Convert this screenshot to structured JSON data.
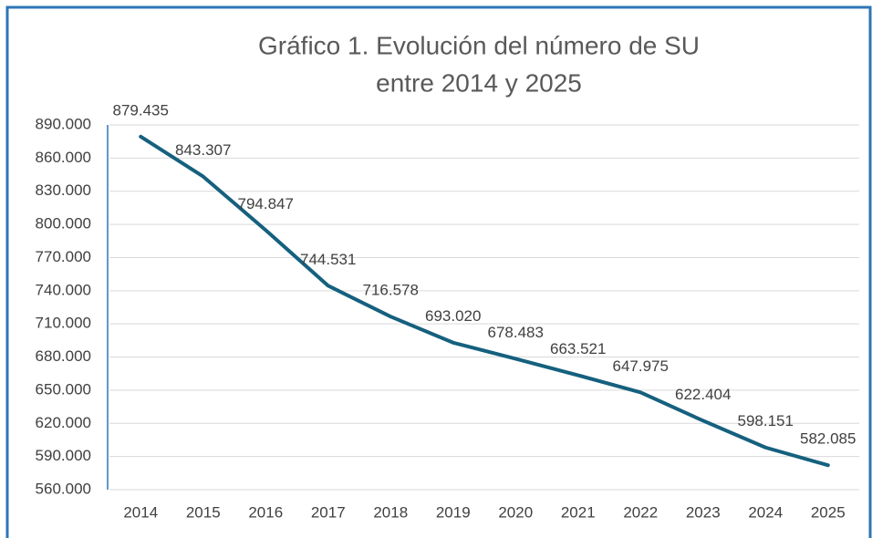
{
  "chart_data": {
    "type": "line",
    "title": [
      "Gráfico 1. Evolución del número de SU",
      "entre 2014 y 2025"
    ],
    "categories": [
      "2014",
      "2015",
      "2016",
      "2017",
      "2018",
      "2019",
      "2020",
      "2021",
      "2022",
      "2023",
      "2024",
      "2025"
    ],
    "values": [
      879435,
      843307,
      794847,
      744531,
      716578,
      693020,
      678483,
      663521,
      647975,
      622404,
      598151,
      582085
    ],
    "value_labels": [
      "879.435",
      "843.307",
      "794.847",
      "744.531",
      "716.578",
      "693.020",
      "678.483",
      "663.521",
      "647.975",
      "622.404",
      "598.151",
      "582.085"
    ],
    "color": "#15607e",
    "ylim": [
      560000,
      890000
    ],
    "yticks": [
      {
        "value": 560000,
        "label": "560.000"
      },
      {
        "value": 590000,
        "label": "590.000"
      },
      {
        "value": 620000,
        "label": "620.000"
      },
      {
        "value": 650000,
        "label": "650.000"
      },
      {
        "value": 680000,
        "label": "680.000"
      },
      {
        "value": 710000,
        "label": "710.000"
      },
      {
        "value": 740000,
        "label": "740.000"
      },
      {
        "value": 770000,
        "label": "770.000"
      },
      {
        "value": 800000,
        "label": "800.000"
      },
      {
        "value": 830000,
        "label": "830.000"
      },
      {
        "value": 860000,
        "label": "860.000"
      },
      {
        "value": 890000,
        "label": "890.000"
      }
    ],
    "grid": true
  }
}
